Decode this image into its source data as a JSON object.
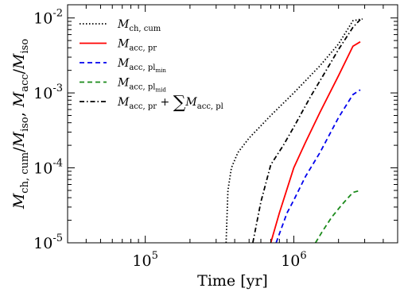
{
  "chart_data": {
    "type": "line",
    "xlabel": "Time [yr]",
    "ylabel_main": "M",
    "ylabel": "M_ch,cum / M_iso, M_acc / M_iso",
    "xscale": "log",
    "yscale": "log",
    "xlim": [
      30000,
      5000000
    ],
    "ylim": [
      1e-05,
      0.015
    ],
    "x_ticks": [
      {
        "value": 100000,
        "base": "10",
        "exp": "5"
      },
      {
        "value": 1000000,
        "base": "10",
        "exp": "6"
      }
    ],
    "y_ticks": [
      {
        "value": 1e-05,
        "base": "10",
        "exp": "-5"
      },
      {
        "value": 0.0001,
        "base": "10",
        "exp": "-4"
      },
      {
        "value": 0.001,
        "base": "10",
        "exp": "-3"
      },
      {
        "value": 0.01,
        "base": "10",
        "exp": "-2"
      }
    ],
    "legend_position": "top-left",
    "series": [
      {
        "name": "M_ch,cum",
        "color": "#000000",
        "dash": "1.5,2.5",
        "x": [
          350000,
          360000,
          380000,
          420000,
          500000,
          700000,
          1000000,
          1500000,
          2000000,
          2500000,
          2900000
        ],
        "y": [
          1e-05,
          5e-05,
          0.0001,
          0.00016,
          0.00025,
          0.0005,
          0.001,
          0.0023,
          0.0045,
          0.0092,
          0.0097
        ]
      },
      {
        "name": "M_acc,pr",
        "color": "#ff0000",
        "dash": "",
        "x": [
          700000,
          800000,
          1000000,
          1200000,
          1500000,
          2000000,
          2500000,
          2800000
        ],
        "y": [
          1e-05,
          2.5e-05,
          0.0001,
          0.00022,
          0.00055,
          0.0017,
          0.0042,
          0.0048
        ]
      },
      {
        "name": "M_acc,pl_min",
        "color": "#0000ee",
        "dash": "6,4",
        "x": [
          760000,
          900000,
          1000000,
          1200000,
          1500000,
          2000000,
          2500000,
          2800000
        ],
        "y": [
          1e-05,
          2.5e-05,
          3.7e-05,
          7.7e-05,
          0.00016,
          0.00047,
          0.00095,
          0.0011
        ]
      },
      {
        "name": "M_acc,pl_mid",
        "color": "#1a8a1a",
        "dash": "6,4",
        "x": [
          1400000,
          1550000,
          1800000,
          2100000,
          2500000,
          2800000
        ],
        "y": [
          1e-05,
          1.4e-05,
          2.2e-05,
          3.2e-05,
          4.7e-05,
          5e-05
        ]
      },
      {
        "name": "M_acc,pr + ΣM_acc,pl",
        "color": "#000000",
        "dash": "6,3,1.5,3",
        "x": [
          530000,
          600000,
          700000,
          850000,
          1000000,
          1300000,
          1600000,
          2000000,
          2500000,
          2800000
        ],
        "y": [
          1e-05,
          3.5e-05,
          0.00011,
          0.0002,
          0.00035,
          0.0009,
          0.0018,
          0.0038,
          0.0075,
          0.0095
        ]
      }
    ],
    "legend": [
      {
        "series": 0,
        "main": "M",
        "sub": "ch, cum",
        "subsub": "",
        "suffix": ""
      },
      {
        "series": 1,
        "main": "M",
        "sub": "acc, pr",
        "subsub": "",
        "suffix": ""
      },
      {
        "series": 2,
        "main": "M",
        "sub": "acc, pl",
        "subsub": "min",
        "suffix": ""
      },
      {
        "series": 3,
        "main": "M",
        "sub": "acc, pl",
        "subsub": "mid",
        "suffix": ""
      },
      {
        "series": 4,
        "main": "M",
        "sub": "acc, pr",
        "subsub": "",
        "suffix": " + ∑M",
        "suffix_sub": "acc, pl"
      }
    ]
  }
}
